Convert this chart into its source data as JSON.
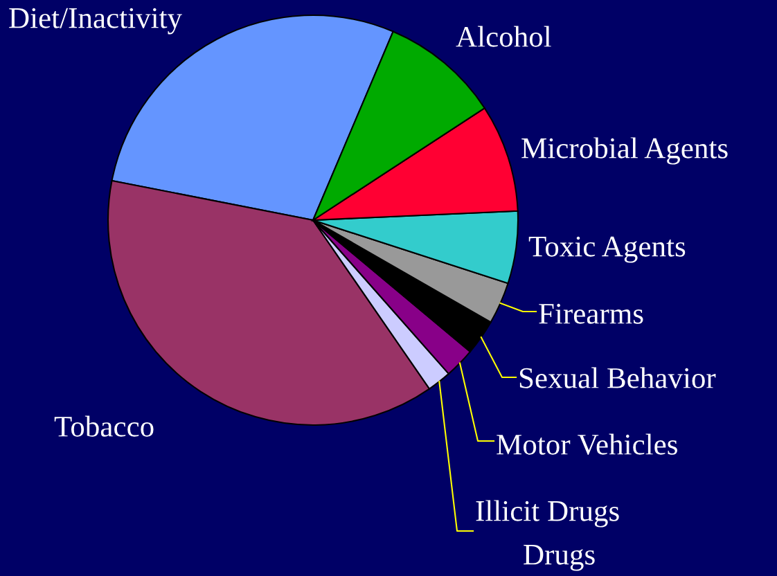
{
  "chart_data": {
    "type": "pie",
    "categories": [
      "Diet/Inactivity",
      "Tobacco",
      "Illicit Drugs",
      "Motor Vehicles",
      "Sexual Behavior",
      "Firearms",
      "Toxic Agents",
      "Microbial Agents",
      "Alcohol"
    ],
    "values": [
      28.3,
      37.7,
      1.9,
      2.4,
      2.8,
      3.3,
      5.7,
      8.5,
      9.4
    ],
    "colors": [
      "#6495ff",
      "#993366",
      "#ccccff",
      "#880088",
      "#000000",
      "#999999",
      "#33cccc",
      "#ff0033",
      "#00aa00"
    ],
    "annotations": [
      "Drugs"
    ]
  }
}
